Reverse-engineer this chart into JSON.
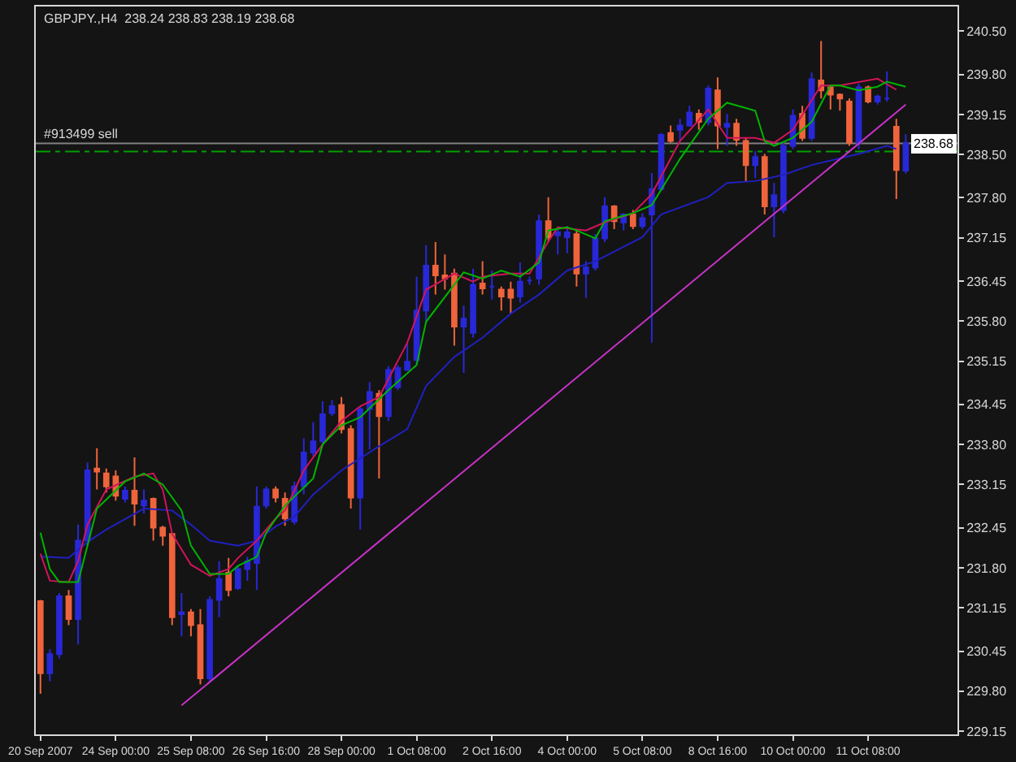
{
  "chart_data": {
    "type": "candlestick",
    "title": "GBPJPY.,H4  238.24 238.83 238.19 238.68",
    "categories": [
      "20 Sep 2007",
      null,
      null,
      null,
      null,
      null,
      null,
      null,
      "24 Sep 00:00",
      null,
      null,
      null,
      null,
      null,
      null,
      null,
      "25 Sep 08:00",
      null,
      null,
      null,
      null,
      null,
      null,
      null,
      "26 Sep 16:00",
      null,
      null,
      null,
      null,
      null,
      null,
      null,
      "28 Sep 00:00",
      null,
      null,
      null,
      null,
      null,
      null,
      null,
      "1 Oct 08:00",
      null,
      null,
      null,
      null,
      null,
      null,
      null,
      "2 Oct 16:00",
      null,
      null,
      null,
      null,
      null,
      null,
      null,
      "4 Oct 00:00",
      null,
      null,
      null,
      null,
      null,
      null,
      null,
      "5 Oct 08:00",
      null,
      null,
      null,
      null,
      null,
      null,
      null,
      "8 Oct 16:00",
      null,
      null,
      null,
      null,
      null,
      null,
      null,
      "10 Oct 00:00",
      null,
      null,
      null,
      null,
      null,
      null,
      null,
      "11 Oct 08:00",
      null,
      null,
      null,
      null
    ],
    "ohlc": [
      [
        231.26,
        231.28,
        229.76,
        230.09
      ],
      [
        230.09,
        230.48,
        229.96,
        230.4
      ],
      [
        230.4,
        231.39,
        230.33,
        231.34
      ],
      [
        231.34,
        231.44,
        230.87,
        230.97
      ],
      [
        230.97,
        232.5,
        230.56,
        232.24
      ],
      [
        232.24,
        233.51,
        232.16,
        233.38
      ],
      [
        233.41,
        233.74,
        233.07,
        233.36
      ],
      [
        233.33,
        233.41,
        233.02,
        233.12
      ],
      [
        233.28,
        233.38,
        232.89,
        232.97
      ],
      [
        232.92,
        233.12,
        232.86,
        233.05
      ],
      [
        233.05,
        233.59,
        232.48,
        232.84
      ],
      [
        232.81,
        233.07,
        232.68,
        232.89
      ],
      [
        232.92,
        232.94,
        232.24,
        232.45
      ],
      [
        232.45,
        232.48,
        232.16,
        232.32
      ],
      [
        232.35,
        232.37,
        230.87,
        231.0
      ],
      [
        231.05,
        231.39,
        230.69,
        231.08
      ],
      [
        231.08,
        231.13,
        230.69,
        230.87
      ],
      [
        230.87,
        231.13,
        229.91,
        230.01
      ],
      [
        230.01,
        231.34,
        229.96,
        231.28
      ],
      [
        231.28,
        231.91,
        231.0,
        231.62
      ],
      [
        231.72,
        231.96,
        231.34,
        231.44
      ],
      [
        231.47,
        231.83,
        231.44,
        231.78
      ],
      [
        231.78,
        231.98,
        231.59,
        231.91
      ],
      [
        231.88,
        233.12,
        231.44,
        232.79
      ],
      [
        232.81,
        233.12,
        232.76,
        233.07
      ],
      [
        233.07,
        233.12,
        232.86,
        232.94
      ],
      [
        232.92,
        233.02,
        232.48,
        232.6
      ],
      [
        232.55,
        233.2,
        232.5,
        233.12
      ],
      [
        233.12,
        233.9,
        232.99,
        233.67
      ],
      [
        233.67,
        234.16,
        233.61,
        233.85
      ],
      [
        233.85,
        234.5,
        233.8,
        234.29
      ],
      [
        234.31,
        234.52,
        234.26,
        234.42
      ],
      [
        234.44,
        234.57,
        233.98,
        234.05
      ],
      [
        234.05,
        234.11,
        232.76,
        232.94
      ],
      [
        232.94,
        234.42,
        232.42,
        234.37
      ],
      [
        234.37,
        234.81,
        233.72,
        234.65
      ],
      [
        234.62,
        234.68,
        233.25,
        234.26
      ],
      [
        234.26,
        235.07,
        234.18,
        235.01
      ],
      [
        234.73,
        235.09,
        234.68,
        235.04
      ],
      [
        235.01,
        235.45,
        234.99,
        235.14
      ],
      [
        235.17,
        236.52,
        235.09,
        235.97
      ],
      [
        235.97,
        237.03,
        235.79,
        236.7
      ],
      [
        236.7,
        237.08,
        236.23,
        236.54
      ],
      [
        236.54,
        236.88,
        236.31,
        236.49
      ],
      [
        236.57,
        236.65,
        235.4,
        235.71
      ],
      [
        235.71,
        236.05,
        234.96,
        235.84
      ],
      [
        235.61,
        236.65,
        235.53,
        236.39
      ],
      [
        236.41,
        236.77,
        236.23,
        236.33
      ],
      [
        236.36,
        236.62,
        236.15,
        236.36
      ],
      [
        236.31,
        236.36,
        235.97,
        236.2
      ],
      [
        236.31,
        236.44,
        235.92,
        236.18
      ],
      [
        236.2,
        236.75,
        236.1,
        236.44
      ],
      [
        236.46,
        236.52,
        236.39,
        236.46
      ],
      [
        236.49,
        237.53,
        236.39,
        237.42
      ],
      [
        237.42,
        237.81,
        237.08,
        237.16
      ],
      [
        237.19,
        237.32,
        236.88,
        237.24
      ],
      [
        237.16,
        237.34,
        236.9,
        237.24
      ],
      [
        237.21,
        237.27,
        236.36,
        236.57
      ],
      [
        236.57,
        236.77,
        236.18,
        236.67
      ],
      [
        236.67,
        237.21,
        236.62,
        237.14
      ],
      [
        237.14,
        237.81,
        237.08,
        237.66
      ],
      [
        237.66,
        237.68,
        237.29,
        237.42
      ],
      [
        237.4,
        237.55,
        237.27,
        237.53
      ],
      [
        237.53,
        237.6,
        237.29,
        237.34
      ],
      [
        237.34,
        237.55,
        237.29,
        237.47
      ],
      [
        237.53,
        238.2,
        235.45,
        237.94
      ],
      [
        237.94,
        238.85,
        237.91,
        238.82
      ],
      [
        238.85,
        238.97,
        238.69,
        238.72
      ],
      [
        238.9,
        239.08,
        238.72,
        238.97
      ],
      [
        238.97,
        239.29,
        238.95,
        239.18
      ],
      [
        239.16,
        239.23,
        238.9,
        239.03
      ],
      [
        239.03,
        239.62,
        238.97,
        239.57
      ],
      [
        239.54,
        239.75,
        238.59,
        238.97
      ],
      [
        238.95,
        239.16,
        238.64,
        239.0
      ],
      [
        239.0,
        239.08,
        238.64,
        238.74
      ],
      [
        238.72,
        238.77,
        238.07,
        238.33
      ],
      [
        238.33,
        238.56,
        238.12,
        238.46
      ],
      [
        238.46,
        238.51,
        237.53,
        237.66
      ],
      [
        237.66,
        238.04,
        237.16,
        237.84
      ],
      [
        237.6,
        238.69,
        237.55,
        238.64
      ],
      [
        238.64,
        239.23,
        238.59,
        239.13
      ],
      [
        239.16,
        239.29,
        238.72,
        238.77
      ],
      [
        238.77,
        239.83,
        238.72,
        239.72
      ],
      [
        239.7,
        240.34,
        239.41,
        239.54
      ],
      [
        239.59,
        239.62,
        239.23,
        239.47
      ],
      [
        239.47,
        239.49,
        239.21,
        239.41
      ],
      [
        239.36,
        239.41,
        238.64,
        238.69
      ],
      [
        238.69,
        239.65,
        238.59,
        239.59
      ],
      [
        239.59,
        239.62,
        239.33,
        239.36
      ],
      [
        239.36,
        239.47,
        239.31,
        239.44
      ],
      [
        239.41,
        239.85,
        239.36,
        239.41
      ],
      [
        238.95,
        239.08,
        237.78,
        238.25
      ],
      [
        238.24,
        238.83,
        238.19,
        238.68
      ]
    ],
    "colors": [
      "#f0643c",
      "#2828d8",
      "#2828d8",
      "#f0643c",
      "#2828d8",
      "#2828d8",
      "#f0643c",
      "#f0643c",
      "#f0643c",
      "#2828d8",
      "#f0643c",
      "#2828d8",
      "#f0643c",
      "#f0643c",
      "#f0643c",
      "#2828d8",
      "#f0643c",
      "#f0643c",
      "#2828d8",
      "#2828d8",
      "#f0643c",
      "#2828d8",
      "#2828d8",
      "#2828d8",
      "#2828d8",
      "#f0643c",
      "#f0643c",
      "#2828d8",
      "#2828d8",
      "#2828d8",
      "#2828d8",
      "#2828d8",
      "#f0643c",
      "#f0643c",
      "#2828d8",
      "#2828d8",
      "#f0643c",
      "#2828d8",
      "#2828d8",
      "#2828d8",
      "#2828d8",
      "#2828d8",
      "#f0643c",
      "#f0643c",
      "#f0643c",
      "#2828d8",
      "#2828d8",
      "#f0643c",
      "#2828d8",
      "#f0643c",
      "#f0643c",
      "#2828d8",
      "#2828d8",
      "#2828d8",
      "#f0643c",
      "#2828d8",
      "#2828d8",
      "#f0643c",
      "#2828d8",
      "#2828d8",
      "#2828d8",
      "#f0643c",
      "#2828d8",
      "#f0643c",
      "#2828d8",
      "#2828d8",
      "#2828d8",
      "#f0643c",
      "#2828d8",
      "#2828d8",
      "#f0643c",
      "#2828d8",
      "#f0643c",
      "#2828d8",
      "#f0643c",
      "#f0643c",
      "#2828d8",
      "#f0643c",
      "#2828d8",
      "#2828d8",
      "#2828d8",
      "#f0643c",
      "#2828d8",
      "#f0643c",
      "#f0643c",
      "#f0643c",
      "#f0643c",
      "#2828d8",
      "#f0643c",
      "#2828d8",
      "#2828d8",
      "#f0643c",
      "#2828d8"
    ],
    "series": [
      {
        "type": "line",
        "color": "#2020c0",
        "values": [
          231.98,
          null,
          null,
          231.96,
          null,
          232.22,
          null,
          232.42,
          null,
          null,
          null,
          232.76,
          null,
          null,
          232.73,
          null,
          232.5,
          null,
          232.24,
          null,
          null,
          232.16,
          null,
          232.24,
          null,
          232.47,
          null,
          232.63,
          null,
          232.99,
          null,
          null,
          233.38,
          null,
          null,
          null,
          233.77,
          null,
          null,
          234.05,
          null,
          234.75,
          null,
          null,
          235.22,
          null,
          null,
          235.53,
          null,
          null,
          235.92,
          null,
          null,
          236.23,
          null,
          null,
          236.62,
          null,
          null,
          236.77,
          null,
          null,
          null,
          null,
          237.16,
          null,
          237.53,
          null,
          null,
          null,
          null,
          237.81,
          null,
          238.04,
          null,
          null,
          238.07,
          null,
          null,
          238.17,
          null,
          null,
          238.33,
          null,
          null,
          null,
          null,
          238.51,
          null,
          null,
          238.64,
          238.59,
          null
        ]
      },
      {
        "type": "line",
        "color": "#d2145a",
        "values": [
          232.03,
          231.59,
          null,
          231.57,
          231.91,
          232.5,
          null,
          233.07,
          null,
          null,
          233.28,
          null,
          233.33,
          233.07,
          232.35,
          null,
          231.85,
          null,
          231.67,
          null,
          231.78,
          231.96,
          null,
          232.24,
          null,
          232.6,
          232.73,
          null,
          233.38,
          null,
          233.8,
          null,
          234.18,
          null,
          234.42,
          null,
          234.57,
          null,
          null,
          235.45,
          null,
          236.31,
          null,
          null,
          236.57,
          null,
          236.44,
          236.52,
          null,
          null,
          236.57,
          null,
          236.57,
          null,
          237.09,
          237.32,
          null,
          null,
          237.27,
          null,
          237.4,
          null,
          null,
          237.55,
          null,
          237.86,
          null,
          null,
          238.72,
          null,
          null,
          239.23,
          null,
          238.77,
          null,
          null,
          238.77,
          null,
          238.69,
          null,
          238.9,
          null,
          null,
          239.62,
          null,
          239.62,
          null,
          null,
          null,
          239.73,
          null,
          239.55,
          null
        ]
      },
      {
        "type": "line",
        "color": "#00b400",
        "values": [
          232.37,
          231.78,
          231.57,
          null,
          231.57,
          232.16,
          232.76,
          null,
          null,
          233.2,
          null,
          233.33,
          null,
          233.15,
          null,
          232.73,
          232.16,
          null,
          231.7,
          null,
          231.7,
          231.83,
          null,
          231.98,
          232.37,
          null,
          232.81,
          null,
          null,
          233.25,
          233.8,
          null,
          234.11,
          null,
          234.24,
          null,
          null,
          234.68,
          null,
          null,
          235.09,
          235.79,
          null,
          null,
          236.39,
          236.59,
          null,
          236.49,
          null,
          236.62,
          null,
          236.52,
          null,
          236.75,
          237.27,
          null,
          237.32,
          237.27,
          null,
          237.14,
          237.42,
          null,
          null,
          237.55,
          null,
          237.68,
          null,
          null,
          238.43,
          null,
          null,
          239.08,
          null,
          239.34,
          null,
          null,
          239.21,
          238.72,
          238.64,
          null,
          238.77,
          null,
          239.03,
          null,
          239.62,
          239.62,
          null,
          239.54,
          null,
          239.6,
          239.68,
          null,
          239.6
        ]
      },
      {
        "type": "line",
        "color": "#c832c8",
        "values": [
          null,
          null,
          null,
          null,
          null,
          null,
          null,
          null,
          null,
          null,
          null,
          null,
          null,
          null,
          null,
          229.57,
          null,
          null,
          null,
          null,
          null,
          null,
          null,
          null,
          null,
          null,
          null,
          null,
          null,
          null,
          null,
          null,
          null,
          null,
          null,
          null,
          null,
          null,
          null,
          null,
          null,
          null,
          null,
          null,
          null,
          null,
          null,
          null,
          null,
          null,
          null,
          null,
          null,
          null,
          null,
          null,
          null,
          null,
          null,
          null,
          null,
          null,
          null,
          null,
          null,
          null,
          null,
          null,
          null,
          null,
          null,
          null,
          null,
          null,
          null,
          null,
          null,
          null,
          null,
          null,
          null,
          null,
          null,
          null,
          null,
          null,
          null,
          null,
          null,
          null,
          null,
          null,
          239.31
        ]
      }
    ],
    "ref_lines": [
      {
        "axis": "y",
        "value": 238.68,
        "label": "238.68",
        "color": "#808080",
        "line_style": "solid"
      },
      {
        "axis": "y",
        "value": 238.55,
        "label": "#913499 sell",
        "color": "#00a000",
        "line_style": "dashed"
      }
    ],
    "ylim": [
      229.1,
      240.9
    ],
    "yticks": [
      {
        "value": 240.5,
        "label": "240.50"
      },
      {
        "value": 239.8,
        "label": "239.80"
      },
      239.15,
      {
        "value": 238.5,
        "label": "238.50"
      },
      {
        "value": 237.8,
        "label": "237.80"
      },
      237.15,
      236.45,
      {
        "value": 235.8,
        "label": "235.80"
      },
      235.15,
      234.45,
      {
        "value": 233.8,
        "label": "233.80"
      },
      233.15,
      232.45,
      {
        "value": 231.8,
        "label": "231.80"
      },
      231.15,
      230.45,
      {
        "value": 229.8,
        "label": "229.80"
      },
      229.15
    ],
    "grid": false
  }
}
